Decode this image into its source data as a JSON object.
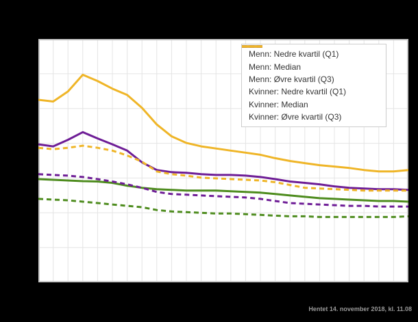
{
  "footer": {
    "text": "Hentet 14. november 2018, kl. 11.08",
    "color": "#9a9a9a"
  },
  "chart_data": {
    "type": "line",
    "note": "No axis tick labels are visible in the screenshot; values are estimated in horizontal-gridline units (0 = bottom axis, 7 = top frame). 26 evenly spaced x positions.",
    "x_index": [
      0,
      1,
      2,
      3,
      4,
      5,
      6,
      7,
      8,
      9,
      10,
      11,
      12,
      13,
      14,
      15,
      16,
      17,
      18,
      19,
      20,
      21,
      22,
      23,
      24,
      25
    ],
    "x_labels_visible": false,
    "y_labels_visible": false,
    "ylim": [
      0,
      7
    ],
    "grid": true,
    "legend_position": "top-right",
    "style": {
      "plot_background": "#ffffff",
      "page_background": "#000000",
      "grid_color": "#e4e4e4",
      "frame_color": "#c8c8c8",
      "legend_border_color": "#cccccc",
      "legend_text_color": "#333333",
      "green": "#4e8c1e",
      "purple": "#6e1d96",
      "gold": "#efb527"
    },
    "series": [
      {
        "name": "Menn: Nedre kvartil (Q1)",
        "color": "#4e8c1e",
        "dash": "solid",
        "values": [
          2.97,
          2.95,
          2.93,
          2.91,
          2.9,
          2.86,
          2.78,
          2.72,
          2.68,
          2.66,
          2.64,
          2.64,
          2.64,
          2.62,
          2.6,
          2.58,
          2.54,
          2.5,
          2.46,
          2.42,
          2.4,
          2.38,
          2.36,
          2.34,
          2.34,
          2.32
        ]
      },
      {
        "name": "Menn: Median",
        "color": "#6e1d96",
        "dash": "solid",
        "values": [
          3.97,
          3.91,
          4.1,
          4.32,
          4.14,
          3.97,
          3.79,
          3.45,
          3.23,
          3.17,
          3.15,
          3.11,
          3.09,
          3.09,
          3.07,
          3.03,
          2.97,
          2.9,
          2.86,
          2.82,
          2.76,
          2.72,
          2.7,
          2.68,
          2.68,
          2.66
        ]
      },
      {
        "name": "Menn: Øvre kvartil (Q3)",
        "color": "#efb527",
        "dash": "solid",
        "values": [
          5.25,
          5.2,
          5.49,
          5.97,
          5.79,
          5.57,
          5.39,
          5.02,
          4.54,
          4.2,
          4.01,
          3.91,
          3.85,
          3.79,
          3.73,
          3.67,
          3.57,
          3.49,
          3.43,
          3.37,
          3.33,
          3.29,
          3.23,
          3.19,
          3.19,
          3.23
        ]
      },
      {
        "name": "Kvinner: Nedre kvartil (Q1)",
        "color": "#4e8c1e",
        "dash": "dashed",
        "values": [
          2.4,
          2.38,
          2.36,
          2.32,
          2.28,
          2.24,
          2.2,
          2.16,
          2.08,
          2.04,
          2.02,
          2.0,
          1.98,
          1.98,
          1.96,
          1.94,
          1.92,
          1.9,
          1.9,
          1.88,
          1.88,
          1.88,
          1.88,
          1.88,
          1.88,
          1.9
        ]
      },
      {
        "name": "Kvinner: Median",
        "color": "#6e1d96",
        "dash": "dashed",
        "values": [
          3.11,
          3.09,
          3.07,
          3.03,
          2.97,
          2.9,
          2.82,
          2.72,
          2.6,
          2.54,
          2.52,
          2.5,
          2.48,
          2.46,
          2.44,
          2.4,
          2.34,
          2.28,
          2.26,
          2.24,
          2.22,
          2.2,
          2.2,
          2.18,
          2.18,
          2.18
        ]
      },
      {
        "name": "Kvinner: Øvre kvartil (Q3)",
        "color": "#efb527",
        "dash": "dashed",
        "values": [
          3.87,
          3.83,
          3.87,
          3.93,
          3.87,
          3.79,
          3.65,
          3.47,
          3.19,
          3.11,
          3.07,
          3.01,
          2.99,
          2.97,
          2.95,
          2.93,
          2.88,
          2.8,
          2.72,
          2.7,
          2.68,
          2.66,
          2.64,
          2.64,
          2.64,
          2.64
        ]
      }
    ]
  }
}
